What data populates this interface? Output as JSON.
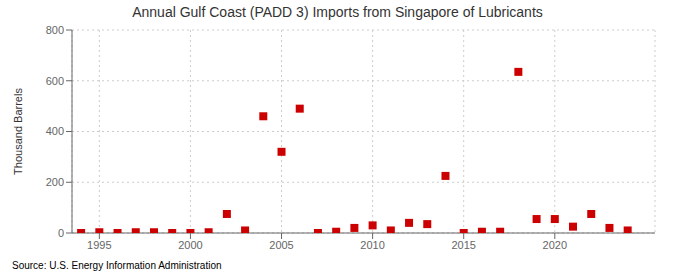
{
  "chart_data": {
    "type": "scatter",
    "title": "Annual Gulf Coast (PADD 3) Imports from Singapore of Lubricants",
    "ylabel": "Thousand Barrels",
    "source": "Source: U.S. Energy Information Administration",
    "x": [
      1994,
      1995,
      1996,
      1997,
      1998,
      1999,
      2000,
      2001,
      2002,
      2003,
      2004,
      2005,
      2006,
      2007,
      2008,
      2009,
      2010,
      2011,
      2012,
      2013,
      2014,
      2015,
      2016,
      2017,
      2018,
      2019,
      2020,
      2021,
      2022,
      2023,
      2024
    ],
    "values": [
      0,
      3,
      0,
      3,
      3,
      0,
      0,
      3,
      75,
      10,
      460,
      320,
      490,
      0,
      5,
      20,
      30,
      10,
      40,
      35,
      225,
      0,
      5,
      5,
      635,
      55,
      55,
      25,
      75,
      20,
      10
    ],
    "color": "#cc0000",
    "marker": "square",
    "xlim": [
      1993.5,
      2025.5
    ],
    "xticks": [
      1995,
      2000,
      2005,
      2010,
      2015,
      2020
    ],
    "ylim": [
      0,
      800
    ],
    "yticks": [
      0,
      200,
      400,
      600,
      800
    ],
    "grid": true
  }
}
